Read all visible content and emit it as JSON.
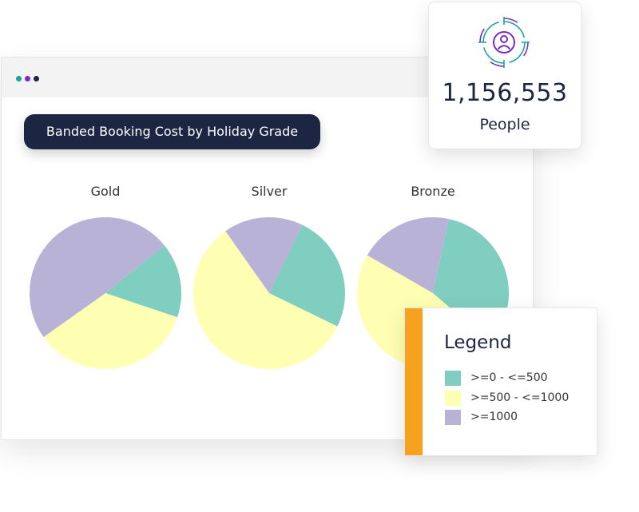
{
  "window": {
    "dots": [
      "#1aa39a",
      "#7b2cbf",
      "#1c2541"
    ]
  },
  "chart_title": "Banded Booking Cost by Holiday Grade",
  "stat_card": {
    "icon": "user-target-icon",
    "value": "1,156,553",
    "label": "People"
  },
  "legend": {
    "title": "Legend",
    "accent": "#f6a21e"
  },
  "chart_data": {
    "type": "pie",
    "title": "Banded Booking Cost by Holiday Grade",
    "categories": [
      ">=0 - <=500",
      ">=500 - <=1000",
      ">=1000"
    ],
    "colors": [
      "#7fcec0",
      "#ffffb3",
      "#b8b2d6"
    ],
    "pies": [
      {
        "name": "Gold",
        "values": [
          16,
          35,
          49
        ]
      },
      {
        "name": "Silver",
        "values": [
          25,
          58,
          17
        ]
      },
      {
        "name": "Bronze",
        "values": [
          33,
          47,
          20
        ]
      }
    ],
    "legend_position": "bottom-right"
  }
}
